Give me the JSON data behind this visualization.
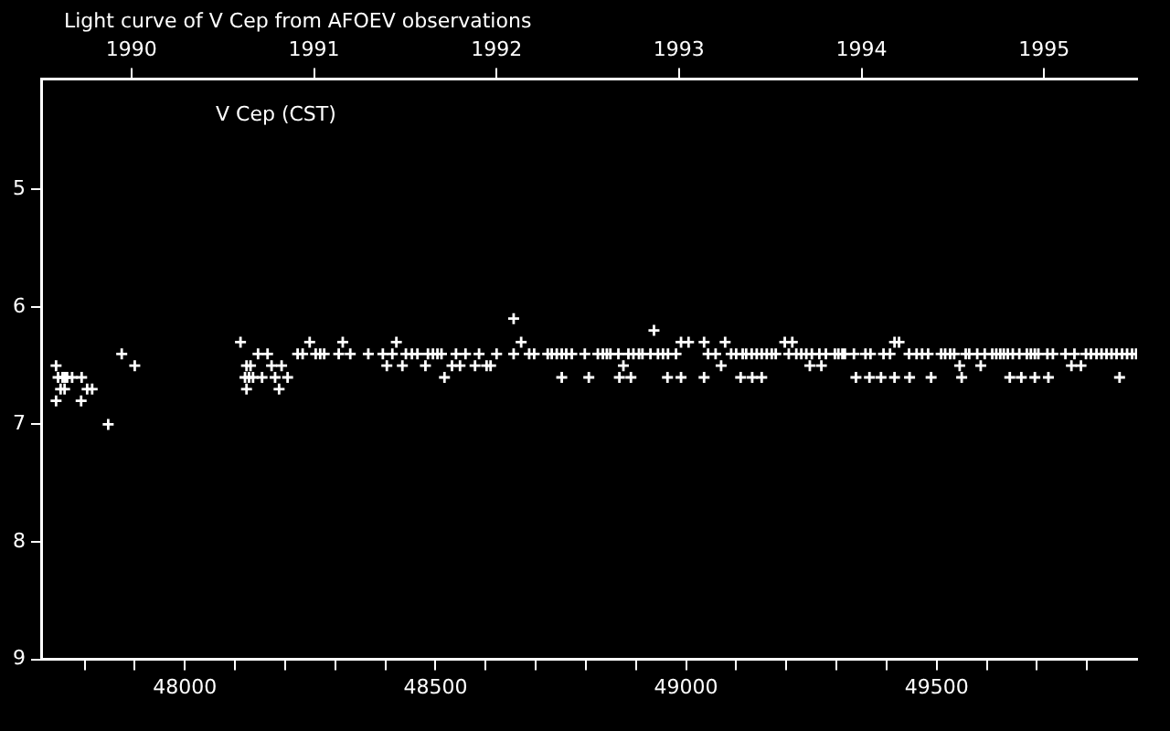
{
  "chart_data": {
    "type": "scatter",
    "title": "Light curve of V Cep from AFOEV observations",
    "annotations": [
      "V Cep (CST)"
    ],
    "marker": "cross",
    "grid": false,
    "legend": false,
    "color": "#ffffff",
    "x": [
      47743,
      47747,
      47756,
      47760,
      47765,
      47775,
      47794,
      47752,
      47760,
      47805,
      47815,
      47743,
      47793,
      47847,
      47874,
      47900,
      48111,
      48123,
      48131,
      48120,
      48128,
      48136,
      48154,
      48123,
      48146,
      48165,
      48173,
      48193,
      48180,
      48205,
      48188,
      48225,
      48235,
      48249,
      48261,
      48270,
      48278,
      48307,
      48330,
      48315,
      48366,
      48395,
      48414,
      48403,
      48422,
      48434,
      48441,
      48453,
      48464,
      48480,
      48485,
      48495,
      48504,
      48512,
      48518,
      48533,
      48549,
      48541,
      48560,
      48579,
      48587,
      48602,
      48610,
      48622,
      48656,
      48656,
      48671,
      48687,
      48697,
      48724,
      48732,
      48742,
      48752,
      48761,
      48772,
      48752,
      48936,
      48990,
      49005,
      49036,
      49078,
      49197,
      49212,
      49416,
      49425,
      48798,
      48824,
      48834,
      48842,
      48849,
      48865,
      48885,
      48895,
      48906,
      48913,
      48929,
      48944,
      48954,
      48964,
      48980,
      49044,
      49059,
      49090,
      49100,
      49113,
      49120,
      49131,
      49141,
      49151,
      49161,
      49171,
      49179,
      49205,
      49220,
      49230,
      49240,
      49251,
      49266,
      49279,
      49297,
      49304,
      49312,
      49317,
      49335,
      49358,
      49368,
      49394,
      49407,
      49445,
      49460,
      49471,
      49483,
      49509,
      49517,
      49527,
      49535,
      49558,
      49565,
      49581,
      49596,
      49611,
      49619,
      49627,
      49634,
      49642,
      49652,
      49665,
      49680,
      49688,
      49696,
      49703,
      49721,
      49732,
      49757,
      49775,
      49798,
      49808,
      49819,
      49829,
      49839,
      49849,
      49859,
      49870,
      49880,
      49890,
      49898,
      48875,
      49070,
      49247,
      49270,
      49546,
      49588,
      49769,
      49788,
      48806,
      48867,
      48890,
      48963,
      48990,
      49036,
      49109,
      49132,
      49151,
      49339,
      49366,
      49389,
      49416,
      49446,
      49489,
      49550,
      49646,
      49669,
      49696,
      49723,
      49865
    ],
    "values": [
      6.5,
      6.6,
      6.6,
      6.6,
      6.6,
      6.6,
      6.6,
      6.7,
      6.7,
      6.7,
      6.7,
      6.8,
      6.8,
      7.0,
      6.4,
      6.5,
      6.3,
      6.5,
      6.5,
      6.6,
      6.6,
      6.6,
      6.6,
      6.7,
      6.4,
      6.4,
      6.5,
      6.5,
      6.6,
      6.6,
      6.7,
      6.4,
      6.4,
      6.3,
      6.4,
      6.4,
      6.4,
      6.4,
      6.4,
      6.3,
      6.4,
      6.4,
      6.4,
      6.5,
      6.3,
      6.5,
      6.4,
      6.4,
      6.4,
      6.5,
      6.4,
      6.4,
      6.4,
      6.4,
      6.6,
      6.5,
      6.5,
      6.4,
      6.4,
      6.5,
      6.4,
      6.5,
      6.5,
      6.4,
      6.1,
      6.4,
      6.3,
      6.4,
      6.4,
      6.4,
      6.4,
      6.4,
      6.4,
      6.4,
      6.4,
      6.6,
      6.2,
      6.3,
      6.3,
      6.3,
      6.3,
      6.3,
      6.3,
      6.3,
      6.3,
      6.4,
      6.4,
      6.4,
      6.4,
      6.4,
      6.4,
      6.4,
      6.4,
      6.4,
      6.4,
      6.4,
      6.4,
      6.4,
      6.4,
      6.4,
      6.4,
      6.4,
      6.4,
      6.4,
      6.4,
      6.4,
      6.4,
      6.4,
      6.4,
      6.4,
      6.4,
      6.4,
      6.4,
      6.4,
      6.4,
      6.4,
      6.4,
      6.4,
      6.4,
      6.4,
      6.4,
      6.4,
      6.4,
      6.4,
      6.4,
      6.4,
      6.4,
      6.4,
      6.4,
      6.4,
      6.4,
      6.4,
      6.4,
      6.4,
      6.4,
      6.4,
      6.4,
      6.4,
      6.4,
      6.4,
      6.4,
      6.4,
      6.4,
      6.4,
      6.4,
      6.4,
      6.4,
      6.4,
      6.4,
      6.4,
      6.4,
      6.4,
      6.4,
      6.4,
      6.4,
      6.4,
      6.4,
      6.4,
      6.4,
      6.4,
      6.4,
      6.4,
      6.4,
      6.4,
      6.4,
      6.4,
      6.5,
      6.5,
      6.5,
      6.5,
      6.5,
      6.5,
      6.5,
      6.5,
      6.6,
      6.6,
      6.6,
      6.6,
      6.6,
      6.6,
      6.6,
      6.6,
      6.6,
      6.6,
      6.6,
      6.6,
      6.6,
      6.6,
      6.6,
      6.6,
      6.6,
      6.6,
      6.6,
      6.6,
      6.6
    ],
    "xlim": [
      47715,
      49900
    ],
    "xticks": [
      {
        "value": 47800,
        "label": null
      },
      {
        "value": 47900,
        "label": null
      },
      48000,
      {
        "value": 48100,
        "label": null
      },
      {
        "value": 48200,
        "label": null
      },
      {
        "value": 48300,
        "label": null
      },
      {
        "value": 48400,
        "label": null
      },
      48500,
      {
        "value": 48600,
        "label": null
      },
      {
        "value": 48700,
        "label": null
      },
      {
        "value": 48800,
        "label": null
      },
      {
        "value": 48900,
        "label": null
      },
      49000,
      {
        "value": 49100,
        "label": null
      },
      {
        "value": 49200,
        "label": null
      },
      {
        "value": 49300,
        "label": null
      },
      {
        "value": 49400,
        "label": null
      },
      49500,
      {
        "value": 49600,
        "label": null
      },
      {
        "value": 49700,
        "label": null
      },
      {
        "value": 49800,
        "label": null
      }
    ],
    "x2lim": [
      1989.51,
      1995.51
    ],
    "x2ticks": [
      1990,
      1991,
      1992,
      1993,
      1994,
      1995
    ],
    "ylim": [
      9,
      4.06
    ],
    "yticks": [
      5,
      6,
      7,
      8,
      9
    ]
  }
}
